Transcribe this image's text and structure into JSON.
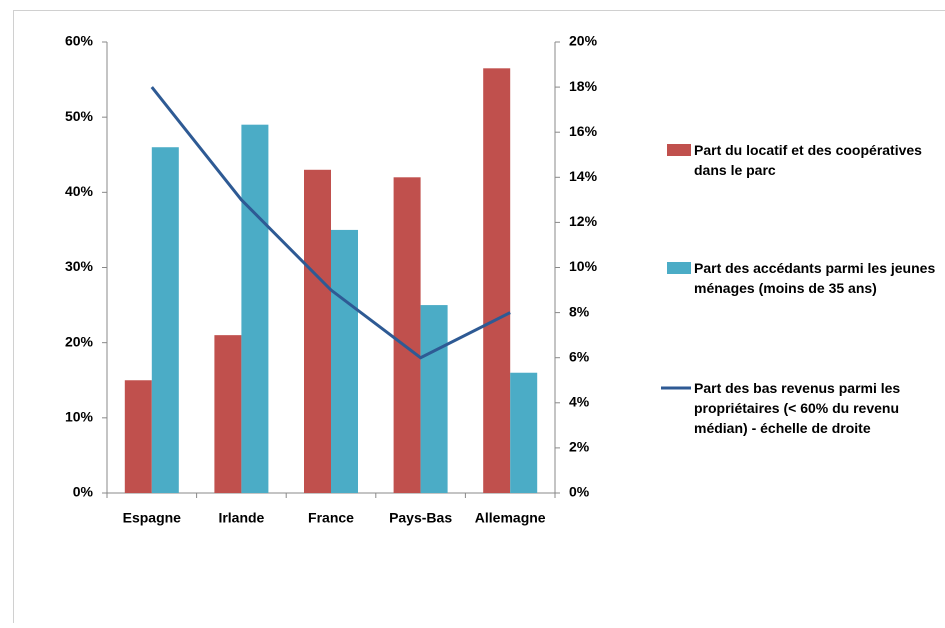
{
  "chart_data": {
    "type": "bar",
    "categories": [
      "Espagne",
      "Irlande",
      "France",
      "Pays-Bas",
      "Allemagne"
    ],
    "series": [
      {
        "name": "Part du locatif et des coopératives dans le parc",
        "color": "#c0504d",
        "values": [
          15,
          21,
          43,
          42,
          56.5
        ]
      },
      {
        "name": "Part des accédants parmi les jeunes ménages (moins de 35 ans)",
        "color": "#4bacc6",
        "values": [
          46,
          49,
          35,
          25,
          16
        ]
      },
      {
        "name": "Part des bas revenus parmi les propriétaires (< 60% du revenu médian) - échelle de droite",
        "color": "#2e5a94",
        "type": "line",
        "axis": "y2",
        "values": [
          18,
          13,
          9,
          6,
          8
        ]
      }
    ],
    "ylim": [
      0,
      60
    ],
    "yticks": [
      {
        "value": 0,
        "label": "0%"
      },
      {
        "value": 10,
        "label": "10%"
      },
      {
        "value": 20,
        "label": "20%"
      },
      {
        "value": 30,
        "label": "30%"
      },
      {
        "value": 40,
        "label": "40%"
      },
      {
        "value": 50,
        "label": "50%"
      },
      {
        "value": 60,
        "label": "60%"
      }
    ],
    "y2lim": [
      0,
      20
    ],
    "y2ticks": [
      {
        "value": 0,
        "label": "0%"
      },
      {
        "value": 2,
        "label": "2%"
      },
      {
        "value": 4,
        "label": "4%"
      },
      {
        "value": 6,
        "label": "6%"
      },
      {
        "value": 8,
        "label": "8%"
      },
      {
        "value": 10,
        "label": "10%"
      },
      {
        "value": 12,
        "label": "12%"
      },
      {
        "value": 14,
        "label": "14%"
      },
      {
        "value": 16,
        "label": "16%"
      },
      {
        "value": 18,
        "label": "18%"
      },
      {
        "value": 20,
        "label": "20%"
      }
    ],
    "legend": "right"
  }
}
